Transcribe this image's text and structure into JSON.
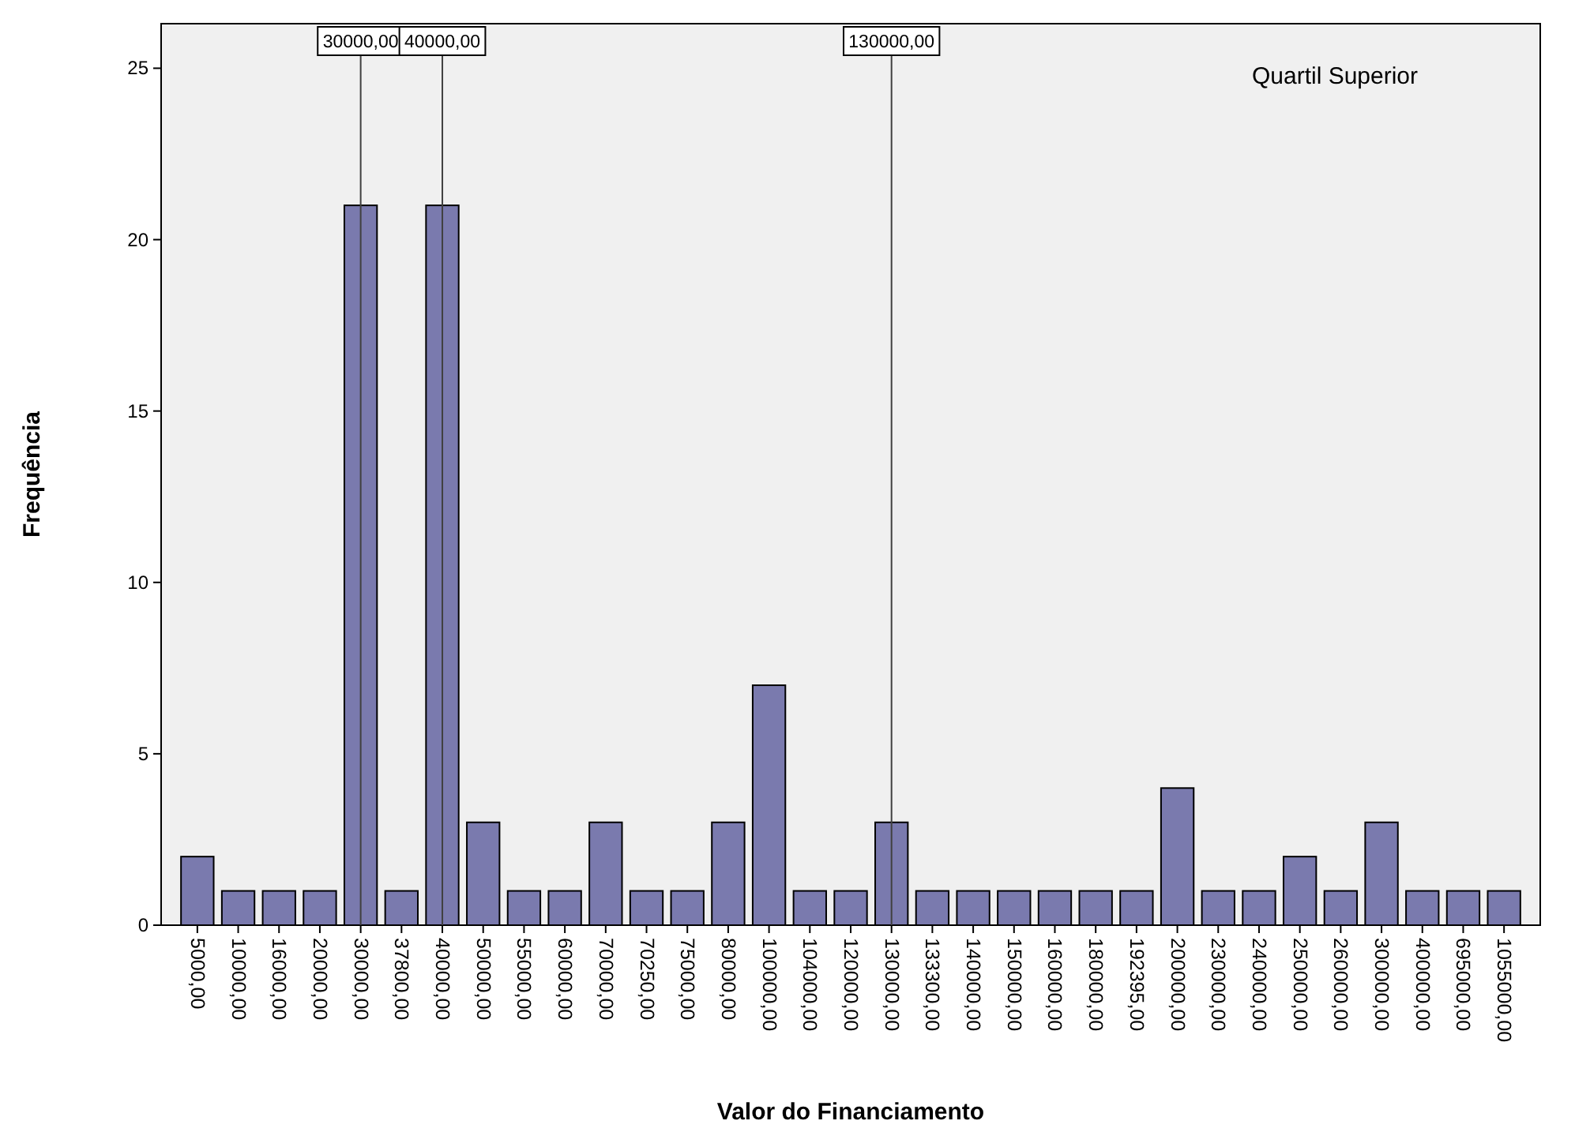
{
  "chart_data": {
    "type": "bar",
    "xlabel": "Valor do Financiamento",
    "ylabel": "Frequência",
    "categories": [
      "5000,00",
      "10000,00",
      "16000,00",
      "20000,00",
      "30000,00",
      "37800,00",
      "40000,00",
      "50000,00",
      "55000,00",
      "60000,00",
      "70000,00",
      "70250,00",
      "75000,00",
      "80000,00",
      "100000,00",
      "104000,00",
      "120000,00",
      "130000,00",
      "133300,00",
      "140000,00",
      "150000,00",
      "160000,00",
      "180000,00",
      "192395,00",
      "200000,00",
      "230000,00",
      "240000,00",
      "250000,00",
      "260000,00",
      "300000,00",
      "400000,00",
      "695000,00",
      "1055000,00"
    ],
    "values": [
      2,
      1,
      1,
      1,
      21,
      1,
      21,
      3,
      1,
      1,
      3,
      1,
      1,
      3,
      7,
      1,
      1,
      3,
      1,
      1,
      1,
      1,
      1,
      1,
      4,
      1,
      1,
      2,
      1,
      3,
      1,
      1,
      1
    ],
    "color": "#7a7aae",
    "ylim": [
      0,
      26.3
    ],
    "yticks": [
      0,
      5,
      10,
      15,
      20,
      25
    ],
    "grid": false,
    "ref_lines": [
      {
        "axis": "x",
        "value": "30000,00",
        "label": "30000,00",
        "color": "#404040"
      },
      {
        "axis": "x",
        "value": "40000,00",
        "label": "40000,00",
        "color": "#404040"
      },
      {
        "axis": "x",
        "value": "130000,00",
        "label": "130000,00",
        "color": "#404040"
      }
    ],
    "annotations": [
      "Quartil Superior"
    ]
  }
}
